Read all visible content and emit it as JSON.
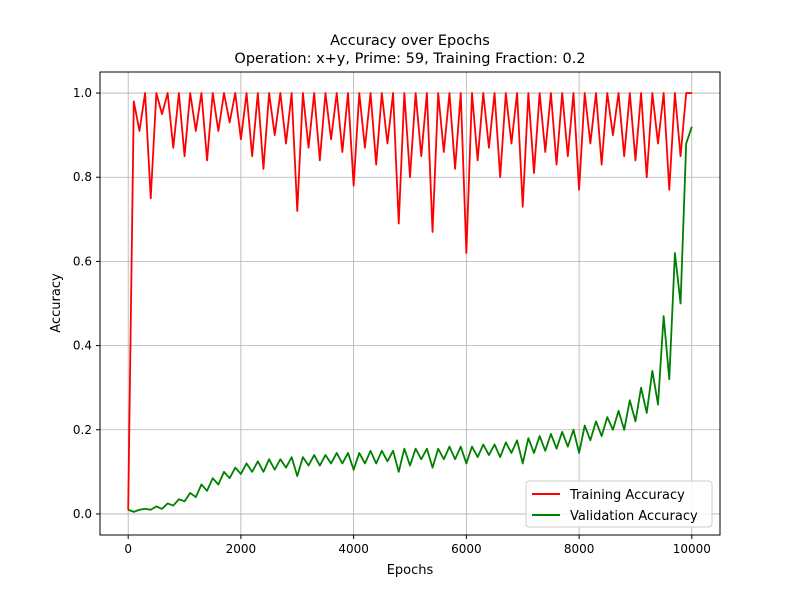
{
  "chart_data": {
    "type": "line",
    "title": "Accuracy over Epochs",
    "subtitle": "Operation: x+y, Prime: 59, Training Fraction: 0.2",
    "x_label": "Epochs",
    "y_label": "Accuracy",
    "xlim": [
      -500,
      10500
    ],
    "ylim": [
      -0.05,
      1.05
    ],
    "xticks": [
      0,
      2000,
      4000,
      6000,
      8000,
      10000
    ],
    "yticks": [
      {
        "value": 0,
        "label": "0.0"
      },
      0.2,
      0.4,
      0.6,
      0.8,
      {
        "value": 1,
        "label": "1.0"
      }
    ],
    "grid": true,
    "legend": "lower right",
    "x": [
      0,
      100,
      200,
      300,
      400,
      500,
      600,
      700,
      800,
      900,
      1000,
      1100,
      1200,
      1300,
      1400,
      1500,
      1600,
      1700,
      1800,
      1900,
      2000,
      2100,
      2200,
      2300,
      2400,
      2500,
      2600,
      2700,
      2800,
      2900,
      3000,
      3100,
      3200,
      3300,
      3400,
      3500,
      3600,
      3700,
      3800,
      3900,
      4000,
      4100,
      4200,
      4300,
      4400,
      4500,
      4600,
      4700,
      4800,
      4900,
      5000,
      5100,
      5200,
      5300,
      5400,
      5500,
      5600,
      5700,
      5800,
      5900,
      6000,
      6100,
      6200,
      6300,
      6400,
      6500,
      6600,
      6700,
      6800,
      6900,
      7000,
      7100,
      7200,
      7300,
      7400,
      7500,
      7600,
      7700,
      7800,
      7900,
      8000,
      8100,
      8200,
      8300,
      8400,
      8500,
      8600,
      8700,
      8800,
      8900,
      9000,
      9100,
      9200,
      9300,
      9400,
      9500,
      9600,
      9700,
      9800,
      9900,
      10000
    ],
    "series": [
      {
        "name": "Training Accuracy",
        "color": "#ff0000",
        "values": [
          0.01,
          0.98,
          0.91,
          1.0,
          0.75,
          1.0,
          0.95,
          1.0,
          0.87,
          1.0,
          0.85,
          1.0,
          0.91,
          1.0,
          0.84,
          1.0,
          0.91,
          1.0,
          0.93,
          1.0,
          0.89,
          1.0,
          0.85,
          1.0,
          0.82,
          1.0,
          0.9,
          1.0,
          0.88,
          1.0,
          0.72,
          1.0,
          0.87,
          1.0,
          0.84,
          1.0,
          0.89,
          1.0,
          0.86,
          1.0,
          0.78,
          1.0,
          0.87,
          1.0,
          0.83,
          1.0,
          0.88,
          1.0,
          0.69,
          1.0,
          0.8,
          1.0,
          0.85,
          1.0,
          0.67,
          1.0,
          0.86,
          1.0,
          0.82,
          1.0,
          0.62,
          1.0,
          0.84,
          1.0,
          0.87,
          1.0,
          0.8,
          1.0,
          0.88,
          1.0,
          0.73,
          1.0,
          0.81,
          1.0,
          0.86,
          1.0,
          0.83,
          1.0,
          0.85,
          1.0,
          0.77,
          1.0,
          0.88,
          1.0,
          0.83,
          1.0,
          0.9,
          1.0,
          0.85,
          1.0,
          0.84,
          1.0,
          0.8,
          1.0,
          0.88,
          1.0,
          0.77,
          1.0,
          0.85,
          1.0,
          1.0
        ]
      },
      {
        "name": "Validation Accuracy",
        "color": "#008000",
        "values": [
          0.01,
          0.005,
          0.01,
          0.012,
          0.01,
          0.018,
          0.012,
          0.025,
          0.02,
          0.035,
          0.03,
          0.05,
          0.04,
          0.07,
          0.055,
          0.085,
          0.07,
          0.1,
          0.085,
          0.11,
          0.095,
          0.12,
          0.1,
          0.125,
          0.1,
          0.13,
          0.105,
          0.13,
          0.11,
          0.135,
          0.09,
          0.135,
          0.115,
          0.14,
          0.115,
          0.14,
          0.12,
          0.145,
          0.12,
          0.145,
          0.105,
          0.145,
          0.12,
          0.15,
          0.12,
          0.15,
          0.125,
          0.15,
          0.1,
          0.155,
          0.115,
          0.155,
          0.13,
          0.155,
          0.11,
          0.155,
          0.13,
          0.16,
          0.13,
          0.16,
          0.12,
          0.16,
          0.135,
          0.165,
          0.14,
          0.165,
          0.135,
          0.17,
          0.145,
          0.175,
          0.12,
          0.18,
          0.145,
          0.185,
          0.15,
          0.19,
          0.155,
          0.195,
          0.16,
          0.2,
          0.145,
          0.21,
          0.175,
          0.22,
          0.185,
          0.23,
          0.2,
          0.245,
          0.2,
          0.27,
          0.22,
          0.3,
          0.24,
          0.34,
          0.26,
          0.47,
          0.32,
          0.62,
          0.5,
          0.88,
          0.92
        ]
      }
    ]
  }
}
